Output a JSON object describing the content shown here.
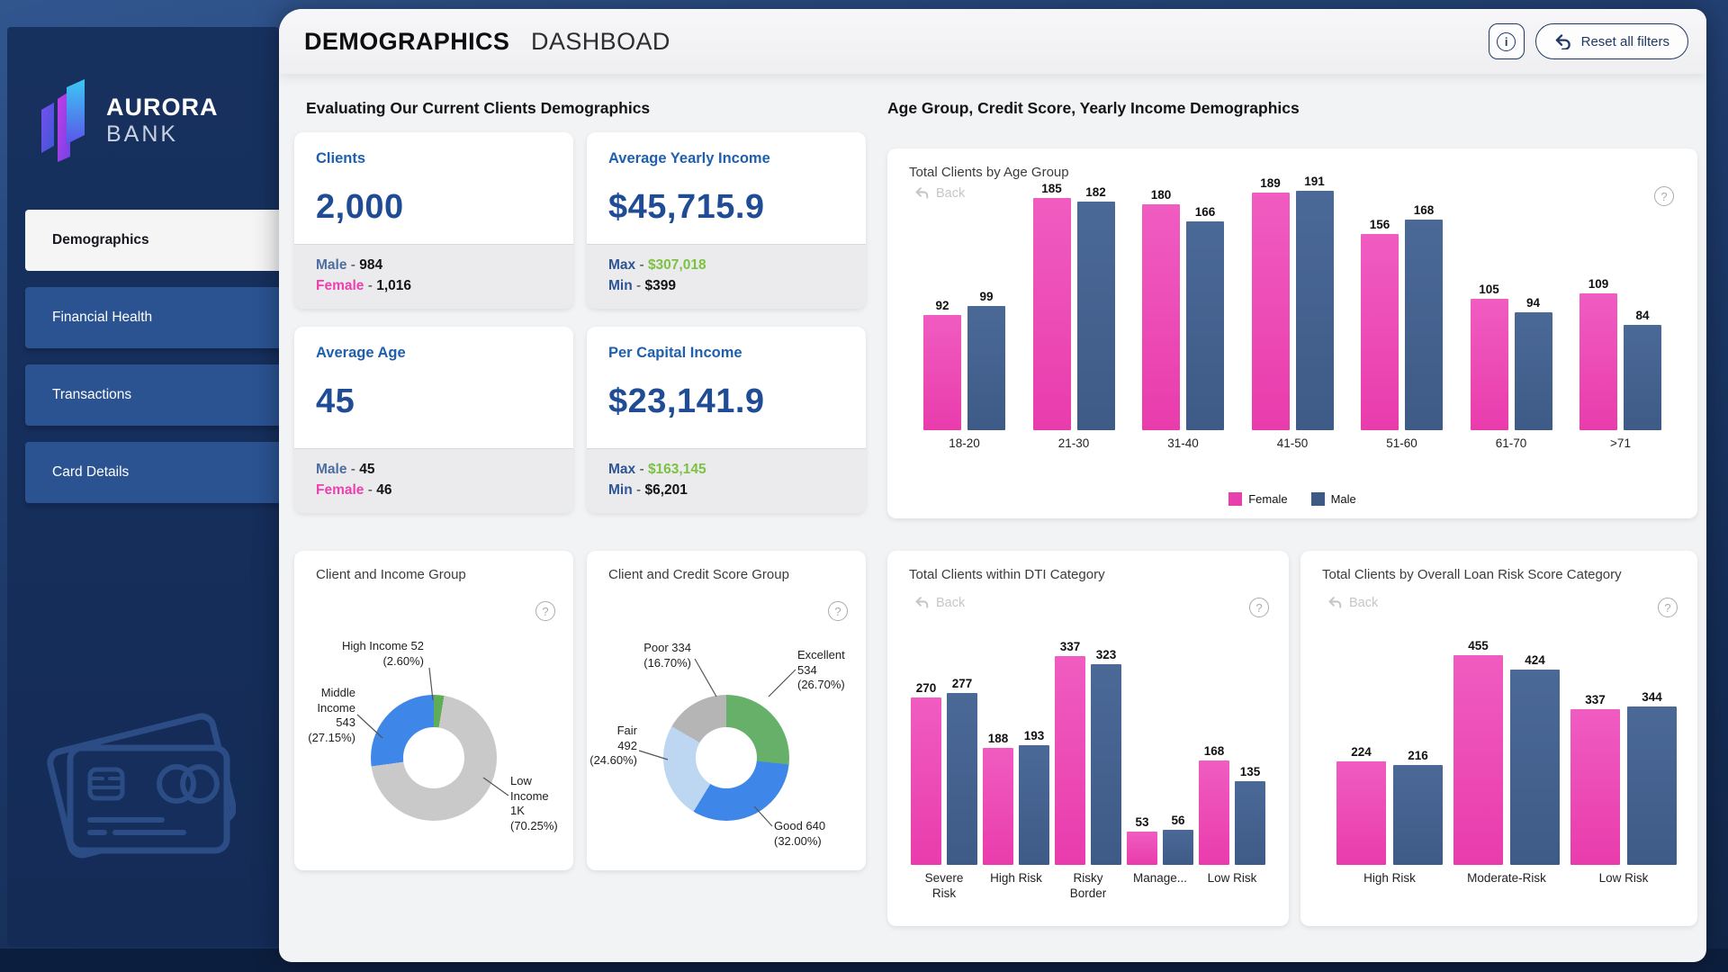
{
  "header": {
    "title_bold": "DEMOGRAPHICS",
    "title_light": "DASHBOAD",
    "info_icon": "i",
    "reset_button": "Reset all filters"
  },
  "sidebar": {
    "brand": {
      "line1": "AURORA",
      "line2": "BANK"
    },
    "items": [
      {
        "label": "Demographics",
        "active": true
      },
      {
        "label": "Financial Health",
        "active": false
      },
      {
        "label": "Transactions",
        "active": false
      },
      {
        "label": "Card Details",
        "active": false
      }
    ]
  },
  "sections": {
    "left_title": "Evaluating Our Current Clients Demographics",
    "right_title": "Age Group, Credit Score, Yearly Income Demographics"
  },
  "kpis": [
    {
      "title": "Clients",
      "value": "2,000",
      "rows": [
        {
          "label": "Male",
          "value": "984"
        },
        {
          "label": "Female",
          "value": "1,016"
        }
      ]
    },
    {
      "title": "Average Yearly Income",
      "value": "$45,715.9",
      "rows": [
        {
          "label": "Max",
          "value": "$307,018"
        },
        {
          "label": "Min",
          "value": "$399"
        }
      ]
    },
    {
      "title": "Average Age",
      "value": "45",
      "rows": [
        {
          "label": "Male",
          "value": "45"
        },
        {
          "label": "Female",
          "value": "46"
        }
      ]
    },
    {
      "title": "Per Capital Income",
      "value": "$23,141.9",
      "rows": [
        {
          "label": "Max",
          "value": "$163,145"
        },
        {
          "label": "Min",
          "value": "$6,201"
        }
      ]
    }
  ],
  "colors": {
    "female": "#E83FAE",
    "male": "#3D5A86",
    "green_value": "#7CC142",
    "navy": "#1F3864",
    "sidebar": "#17315F"
  },
  "chart_data": [
    {
      "id": "age",
      "type": "bar",
      "title": "Total Clients by Age Group",
      "back_label": "Back",
      "legend_position": "bottom-center",
      "grid": false,
      "ylim": [
        0,
        200
      ],
      "categories": [
        "18-20",
        "21-30",
        "31-40",
        "41-50",
        "51-60",
        "61-70",
        ">71"
      ],
      "series": [
        {
          "name": "Female",
          "color": "#E83FAE",
          "values": [
            92,
            185,
            180,
            189,
            156,
            105,
            109
          ]
        },
        {
          "name": "Male",
          "color": "#3D5A86",
          "values": [
            99,
            182,
            166,
            191,
            168,
            94,
            84
          ]
        }
      ]
    },
    {
      "id": "income",
      "type": "pie",
      "title": "Client and Income Group",
      "slices": [
        {
          "label": "High Income",
          "value_text": "52",
          "pct": "2.60%",
          "pct_num": 2.6,
          "color": "#5FAE57",
          "label_lines": [
            "High Income 52",
            "(2.60%)"
          ]
        },
        {
          "label": "Low Income",
          "value_text": "1K",
          "pct": "70.25%",
          "pct_num": 70.25,
          "color": "#C9C9C9",
          "label_lines": [
            "Low",
            "Income",
            "1K",
            "(70.25%)"
          ]
        },
        {
          "label": "Middle Income",
          "value_text": "543",
          "pct": "27.15%",
          "pct_num": 27.15,
          "color": "#3E86E8",
          "label_lines": [
            "Middle",
            "Income",
            "543",
            "(27.15%)"
          ]
        }
      ]
    },
    {
      "id": "credit",
      "type": "pie",
      "title": "Client and Credit Score Group",
      "slices": [
        {
          "label": "Excellent",
          "value_text": "534",
          "pct": "26.70%",
          "pct_num": 26.7,
          "color": "#67B06A",
          "label_lines": [
            "Excellent",
            "534",
            "(26.70%)"
          ]
        },
        {
          "label": "Good",
          "value_text": "640",
          "pct": "32.00%",
          "pct_num": 32.0,
          "color": "#3E86E8",
          "label_lines": [
            "Good 640",
            "(32.00%)"
          ]
        },
        {
          "label": "Fair",
          "value_text": "492",
          "pct": "24.60%",
          "pct_num": 24.6,
          "color": "#BDD7F2",
          "label_lines": [
            "Fair",
            "492",
            "(24.60%)"
          ]
        },
        {
          "label": "Poor",
          "value_text": "334",
          "pct": "16.70%",
          "pct_num": 16.7,
          "color": "#B5B5B5",
          "label_lines": [
            "Poor 334",
            "(16.70%)"
          ]
        }
      ]
    },
    {
      "id": "dti",
      "type": "bar",
      "title": "Total Clients within DTI Category",
      "back_label": "Back",
      "grid": false,
      "ylim": [
        0,
        360
      ],
      "categories": [
        "Severe Risk",
        "High Risk",
        "Risky Border",
        "Manage...",
        "Low Risk"
      ],
      "series": [
        {
          "name": "Female",
          "color": "#E83FAE",
          "values": [
            270,
            188,
            337,
            53,
            168
          ]
        },
        {
          "name": "Male",
          "color": "#3D5A86",
          "values": [
            277,
            193,
            323,
            56,
            135
          ]
        }
      ]
    },
    {
      "id": "loan",
      "type": "bar",
      "title": "Total Clients by Overall Loan Risk Score Category",
      "back_label": "Back",
      "grid": false,
      "ylim": [
        0,
        470
      ],
      "categories": [
        "High Risk",
        "Moderate-Risk",
        "Low Risk"
      ],
      "series": [
        {
          "name": "Female",
          "color": "#E83FAE",
          "values": [
            224,
            455,
            337
          ]
        },
        {
          "name": "Male",
          "color": "#3D5A86",
          "values": [
            216,
            424,
            344
          ]
        }
      ]
    }
  ]
}
